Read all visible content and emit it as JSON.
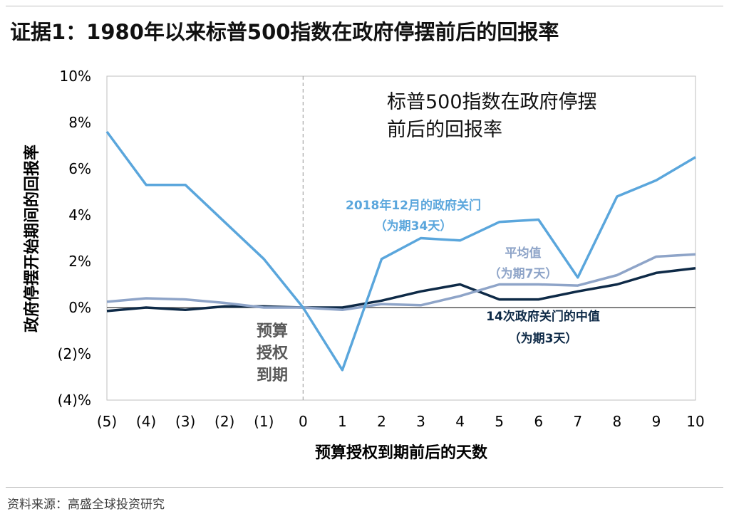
{
  "title": "证据1：1980年以来标普500指数在政府停摆前后的回报率",
  "source": "资料来源：高盛全球投资研究",
  "colors": {
    "series_2018": "#5aa6dc",
    "series_avg": "#8ea4c8",
    "series_median": "#0e2a47",
    "grid": "#bfbfbf",
    "zero": "#595959",
    "vline": "#a6a6a6"
  },
  "chart_data": {
    "type": "line",
    "title": "",
    "xlabel": "预算授权到期前后的天数",
    "ylabel": "政府停摆开始期间的回报率",
    "x": [
      -5,
      -4,
      -3,
      -2,
      -1,
      0,
      1,
      2,
      3,
      4,
      5,
      6,
      7,
      8,
      9,
      10
    ],
    "x_tick_labels": [
      "(5)",
      "(4)",
      "(3)",
      "(2)",
      "(1)",
      "0",
      "1",
      "2",
      "3",
      "4",
      "5",
      "6",
      "7",
      "8",
      "9",
      "10"
    ],
    "ylim": [
      -4,
      10
    ],
    "y_ticks": [
      -4,
      -2,
      0,
      2,
      4,
      6,
      8,
      10
    ],
    "y_tick_labels": [
      "(4)%",
      "(2)%",
      "0%",
      "2%",
      "4%",
      "6%",
      "8%",
      "10%"
    ],
    "grid": false,
    "inset_title": [
      "标普500指数在政府停摆",
      "前后的回报率"
    ],
    "vertical_line": {
      "x": 0,
      "label": [
        "预算",
        "授权",
        "到期"
      ]
    },
    "series": [
      {
        "key": "series_2018",
        "annotation": [
          "2018年12月的政府关门",
          "（为期34天）"
        ],
        "values": [
          7.6,
          5.3,
          5.3,
          3.7,
          2.1,
          0.0,
          -2.7,
          2.1,
          3.0,
          2.9,
          3.7,
          3.8,
          1.3,
          4.8,
          5.5,
          6.5
        ]
      },
      {
        "key": "series_avg",
        "annotation": [
          "平均值",
          "（为期7天）"
        ],
        "values": [
          0.25,
          0.4,
          0.35,
          0.2,
          0.0,
          0.0,
          -0.1,
          0.15,
          0.1,
          0.5,
          1.0,
          1.0,
          0.95,
          1.4,
          2.2,
          2.3
        ]
      },
      {
        "key": "series_median",
        "annotation": [
          "14次政府关门的中值",
          "（为期3天）"
        ],
        "values": [
          -0.15,
          0.0,
          -0.1,
          0.05,
          0.05,
          0.0,
          0.0,
          0.3,
          0.7,
          1.0,
          0.35,
          0.35,
          0.7,
          1.0,
          1.5,
          1.7
        ]
      }
    ]
  }
}
